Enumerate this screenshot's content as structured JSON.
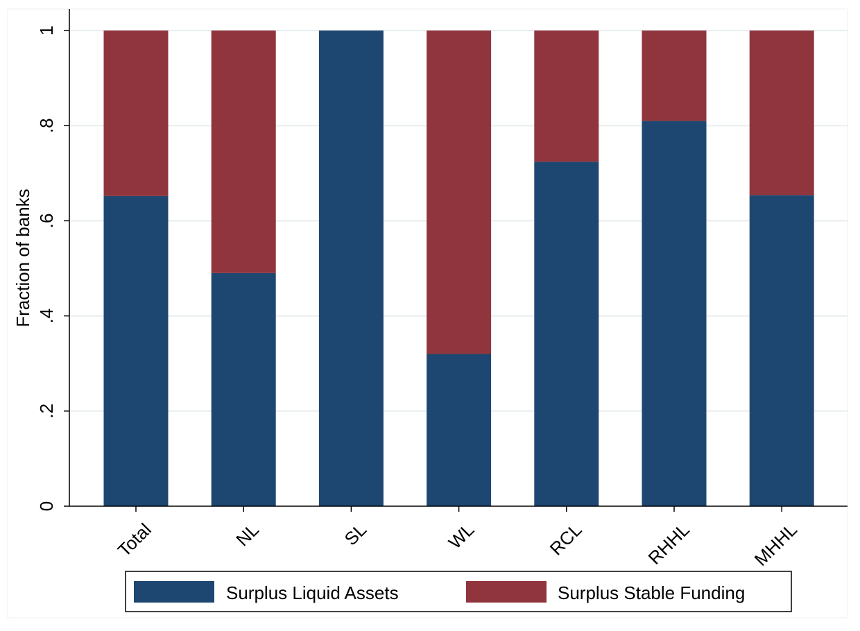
{
  "chart_data": {
    "type": "bar",
    "stacked": true,
    "categories": [
      "Total",
      "NL",
      "SL",
      "WL",
      "RCL",
      "RHHL",
      "MHHL"
    ],
    "series": [
      {
        "name": "Surplus Liquid Assets",
        "color": "#1d4770",
        "values": [
          0.652,
          0.49,
          1.0,
          0.32,
          0.724,
          0.81,
          0.654
        ]
      },
      {
        "name": "Surplus Stable Funding",
        "color": "#90353d",
        "values": [
          0.348,
          0.51,
          0.0,
          0.68,
          0.276,
          0.19,
          0.346
        ]
      }
    ],
    "title": "",
    "xlabel": "",
    "ylabel": "Fraction of banks",
    "ylim": [
      0,
      1
    ],
    "yticks": [
      0,
      0.2,
      0.4,
      0.6,
      0.8,
      1
    ],
    "ytick_labels": [
      "0",
      ".2",
      ".4",
      ".6",
      ".8",
      "1"
    ],
    "grid": true,
    "legend_position": "bottom"
  }
}
